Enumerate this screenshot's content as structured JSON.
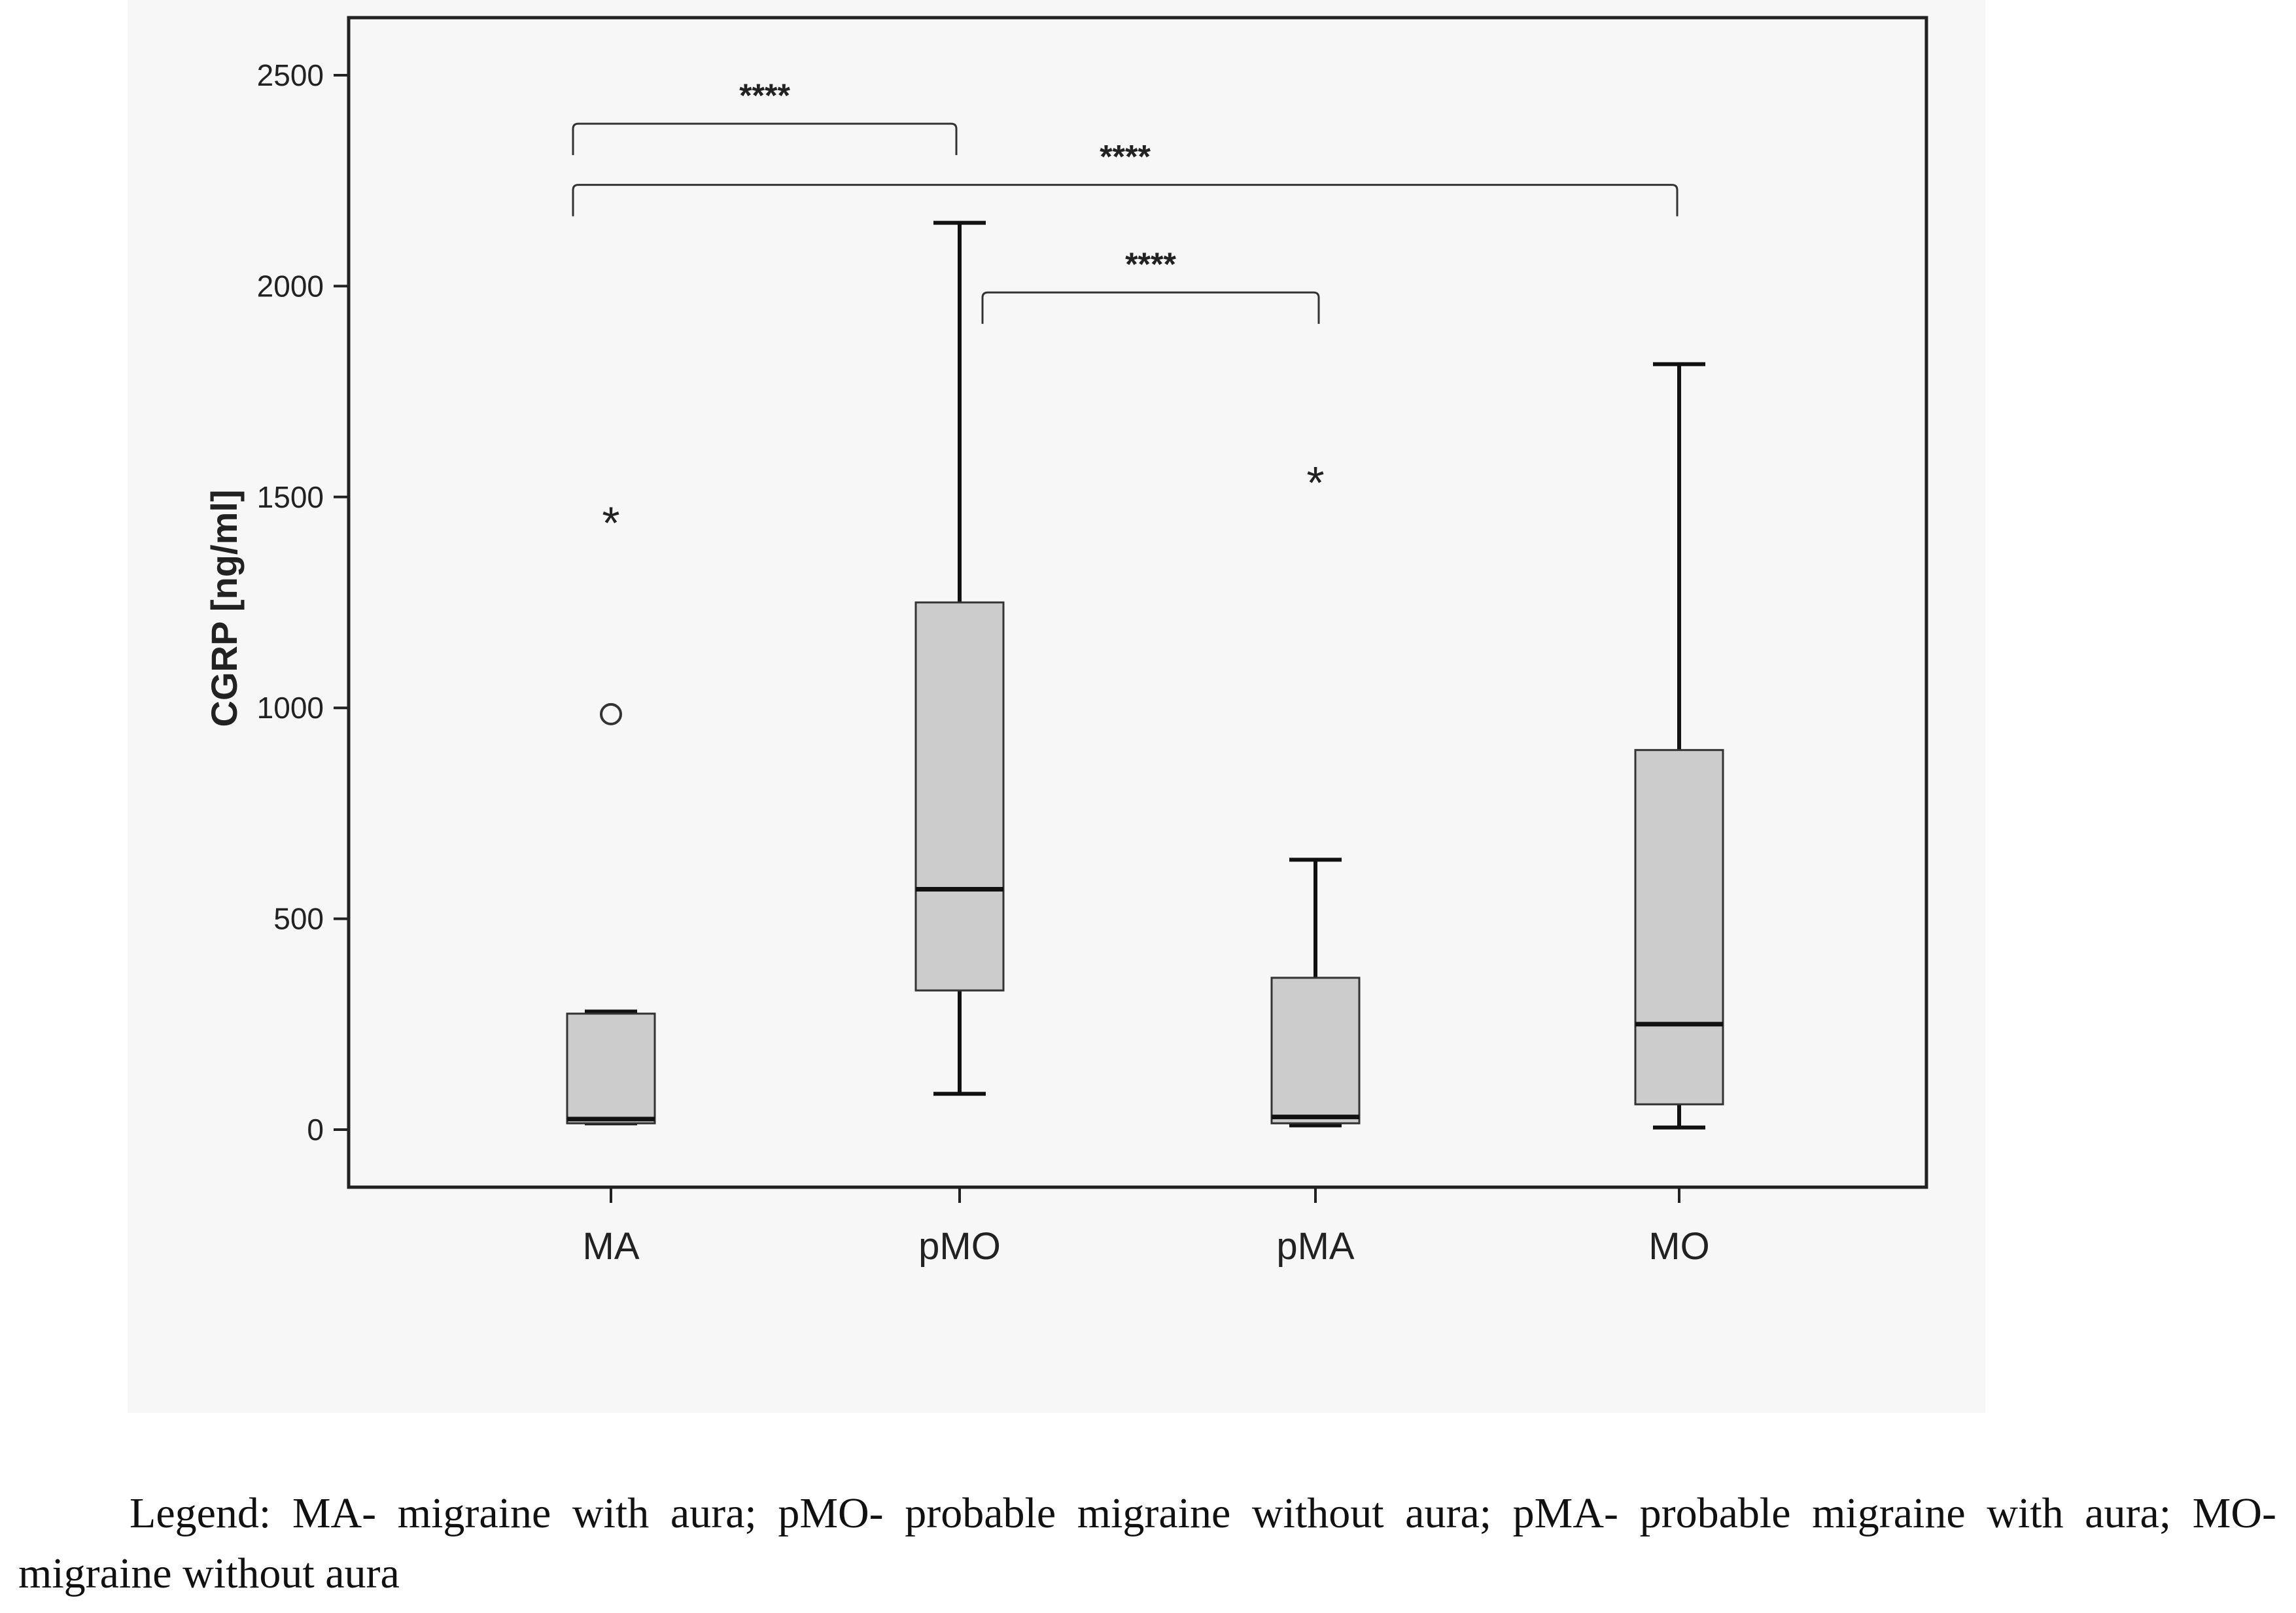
{
  "chart_data": {
    "type": "boxplot",
    "ylabel": "CGRP [ng/ml]",
    "xlabel": "",
    "ylim": [
      -140,
      2640
    ],
    "yticks": [
      0,
      500,
      1000,
      1500,
      2000,
      2500
    ],
    "categories": [
      "MA",
      "pMO",
      "pMA",
      "MO"
    ],
    "boxes": [
      {
        "name": "MA",
        "whisker_low": 15,
        "q1": 15,
        "median": 25,
        "q3": 275,
        "whisker_high": 280
      },
      {
        "name": "pMO",
        "whisker_low": 85,
        "q1": 330,
        "median": 570,
        "q3": 1250,
        "whisker_high": 2150
      },
      {
        "name": "pMA",
        "whisker_low": 10,
        "q1": 15,
        "median": 30,
        "q3": 360,
        "whisker_high": 640
      },
      {
        "name": "MO",
        "whisker_low": 5,
        "q1": 60,
        "median": 250,
        "q3": 900,
        "whisker_high": 1815
      }
    ],
    "outliers": [
      {
        "group": "MA",
        "value": 985,
        "marker": "circle"
      },
      {
        "group": "MA",
        "value": 1445,
        "marker": "star"
      },
      {
        "group": "pMA",
        "value": 1540,
        "marker": "star"
      }
    ],
    "significance": [
      {
        "from": "MA",
        "to": "pMO",
        "label": "****",
        "level": 2385
      },
      {
        "from": "MA",
        "to": "MO",
        "label": "****",
        "level": 2240
      },
      {
        "from": "pMO",
        "to": "pMA",
        "label": "****",
        "level": 1985
      }
    ],
    "box_fill": "#cccccc",
    "line_color": "#111111"
  },
  "caption": {
    "text": "Legend: MA- migraine with aura; pMO- probable migraine without aura; pMA- probable migraine with aura; MO- migraine without aura"
  }
}
